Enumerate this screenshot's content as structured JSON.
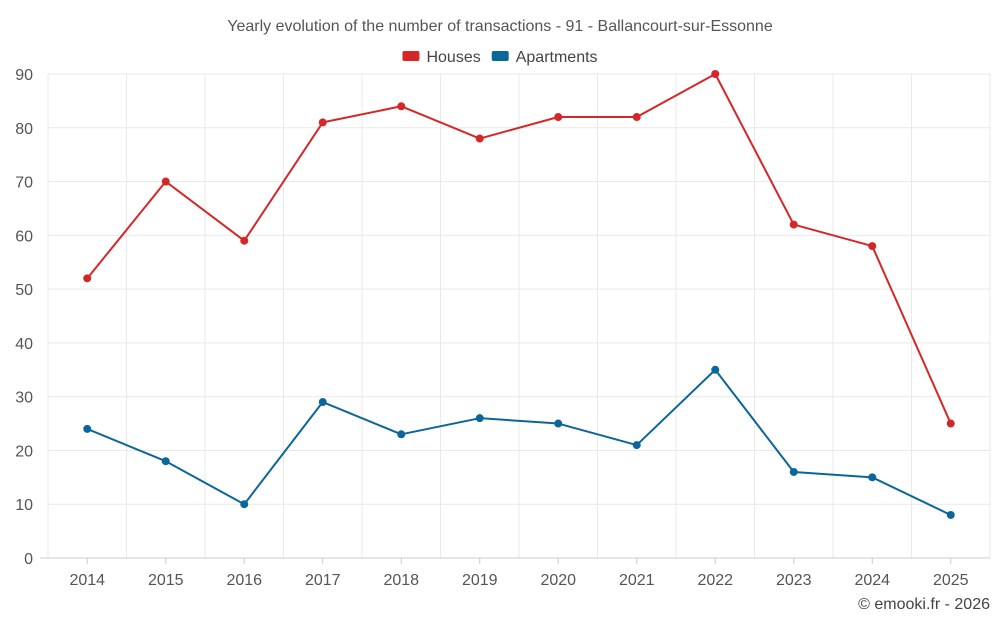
{
  "chart_data": {
    "type": "line",
    "title": "Yearly evolution of the number of transactions - 91 - Ballancourt-sur-Essonne",
    "categories": [
      "2014",
      "2015",
      "2016",
      "2017",
      "2018",
      "2019",
      "2020",
      "2021",
      "2022",
      "2023",
      "2024",
      "2025"
    ],
    "series": [
      {
        "name": "Houses",
        "color": "#d62728",
        "values": [
          52,
          70,
          59,
          81,
          84,
          78,
          82,
          82,
          90,
          62,
          58,
          25
        ]
      },
      {
        "name": "Apartments",
        "color": "#0b6699",
        "values": [
          24,
          18,
          10,
          29,
          23,
          26,
          25,
          21,
          35,
          16,
          15,
          8
        ]
      }
    ],
    "ylim": [
      0,
      90
    ],
    "yticks": [
      0,
      10,
      20,
      30,
      40,
      50,
      60,
      70,
      80,
      90
    ],
    "grid": true,
    "legend_position": "top-center",
    "xlabel": "",
    "ylabel": ""
  },
  "footer": {
    "credit": "© emooki.fr - 2026"
  }
}
